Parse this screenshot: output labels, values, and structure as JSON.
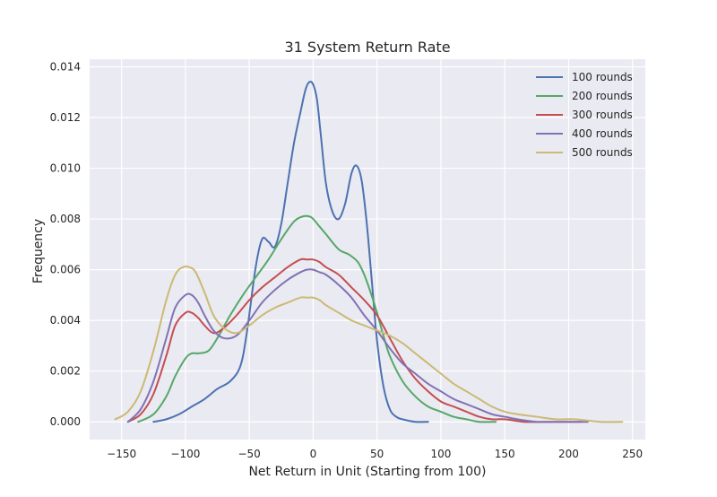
{
  "chart_data": {
    "type": "line",
    "title": "31 System Return Rate",
    "xlabel": "Net Return in Unit (Starting from 100)",
    "ylabel": "Frequency",
    "xlim": [
      -175,
      260
    ],
    "ylim": [
      -0.0007,
      0.0143
    ],
    "xticks": [
      -150,
      -100,
      -50,
      0,
      50,
      100,
      150,
      200,
      250
    ],
    "xtick_labels": [
      "−150",
      "−100",
      "−50",
      "0",
      "50",
      "100",
      "150",
      "200",
      "250"
    ],
    "yticks": [
      0.0,
      0.002,
      0.004,
      0.006,
      0.008,
      0.01,
      0.012,
      0.014
    ],
    "ytick_labels": [
      "0.000",
      "0.002",
      "0.004",
      "0.006",
      "0.008",
      "0.010",
      "0.012",
      "0.014"
    ],
    "grid": true,
    "legend_position": "top-right",
    "series": [
      {
        "name": "100 rounds",
        "color": "#4c72b0",
        "x": [
          -125,
          -115,
          -105,
          -95,
          -85,
          -75,
          -65,
          -57,
          -52,
          -45,
          -40,
          -35,
          -30,
          -25,
          -20,
          -15,
          -10,
          -6,
          -3,
          0,
          3,
          6,
          10,
          15,
          20,
          25,
          30,
          34,
          38,
          42,
          46,
          50,
          55,
          60,
          65,
          70,
          80,
          90
        ],
        "values": [
          0.0,
          0.0001,
          0.0003,
          0.0006,
          0.0009,
          0.0013,
          0.0016,
          0.0022,
          0.0035,
          0.0061,
          0.0072,
          0.0071,
          0.0069,
          0.0078,
          0.0094,
          0.011,
          0.0122,
          0.0131,
          0.0134,
          0.0133,
          0.0127,
          0.0113,
          0.0094,
          0.0083,
          0.008,
          0.0086,
          0.0098,
          0.0101,
          0.0095,
          0.0078,
          0.0055,
          0.0032,
          0.0014,
          0.0005,
          0.0002,
          0.0001,
          0.0,
          0.0
        ]
      },
      {
        "name": "200 rounds",
        "color": "#55a868",
        "x": [
          -137,
          -125,
          -115,
          -108,
          -100,
          -95,
          -90,
          -82,
          -75,
          -65,
          -55,
          -45,
          -35,
          -25,
          -15,
          -8,
          -3,
          0,
          5,
          10,
          20,
          28,
          35,
          40,
          45,
          50,
          55,
          60,
          70,
          80,
          90,
          100,
          110,
          120,
          130,
          143
        ],
        "values": [
          0.0,
          0.0003,
          0.001,
          0.0018,
          0.0025,
          0.0027,
          0.0027,
          0.0028,
          0.0033,
          0.0042,
          0.005,
          0.0057,
          0.0064,
          0.0072,
          0.0079,
          0.0081,
          0.0081,
          0.008,
          0.0077,
          0.0074,
          0.0068,
          0.0066,
          0.0063,
          0.0058,
          0.0051,
          0.0043,
          0.0034,
          0.0026,
          0.0016,
          0.001,
          0.0006,
          0.0004,
          0.0002,
          0.0001,
          0.0,
          0.0
        ]
      },
      {
        "name": "300 rounds",
        "color": "#c44e52",
        "x": [
          -145,
          -135,
          -125,
          -115,
          -108,
          -100,
          -95,
          -90,
          -85,
          -78,
          -70,
          -60,
          -50,
          -40,
          -30,
          -20,
          -10,
          -5,
          0,
          5,
          10,
          20,
          30,
          40,
          50,
          60,
          70,
          80,
          90,
          100,
          110,
          120,
          130,
          140,
          150,
          165,
          180,
          195,
          210
        ],
        "values": [
          0.0,
          0.0003,
          0.0011,
          0.0026,
          0.0038,
          0.0043,
          0.0043,
          0.0041,
          0.0038,
          0.0035,
          0.0037,
          0.0042,
          0.0048,
          0.0053,
          0.0057,
          0.0061,
          0.0064,
          0.0064,
          0.0064,
          0.0063,
          0.0061,
          0.0058,
          0.0053,
          0.0048,
          0.0042,
          0.0033,
          0.0024,
          0.0017,
          0.0012,
          0.0008,
          0.0006,
          0.0004,
          0.0002,
          0.0001,
          0.0001,
          0.0,
          0.0,
          0.0,
          0.0
        ]
      },
      {
        "name": "400 rounds",
        "color": "#8172b3",
        "x": [
          -145,
          -135,
          -125,
          -115,
          -108,
          -100,
          -95,
          -90,
          -85,
          -78,
          -70,
          -60,
          -50,
          -40,
          -30,
          -20,
          -10,
          -5,
          0,
          5,
          10,
          20,
          30,
          40,
          50,
          60,
          70,
          80,
          90,
          100,
          110,
          120,
          130,
          140,
          150,
          160,
          175,
          190,
          205,
          215
        ],
        "values": [
          0.0,
          0.0005,
          0.0016,
          0.0033,
          0.0045,
          0.005,
          0.005,
          0.0047,
          0.0042,
          0.0036,
          0.0033,
          0.0034,
          0.004,
          0.0047,
          0.0052,
          0.0056,
          0.0059,
          0.006,
          0.006,
          0.0059,
          0.0058,
          0.0054,
          0.0049,
          0.0042,
          0.0036,
          0.0029,
          0.0023,
          0.0019,
          0.0015,
          0.0012,
          0.0009,
          0.0007,
          0.0005,
          0.0003,
          0.0002,
          0.0001,
          0.0,
          0.0,
          0.0,
          0.0
        ]
      },
      {
        "name": "500 rounds",
        "color": "#ccb974",
        "x": [
          -155,
          -145,
          -135,
          -125,
          -115,
          -108,
          -102,
          -97,
          -92,
          -85,
          -78,
          -70,
          -60,
          -50,
          -40,
          -30,
          -20,
          -10,
          -5,
          0,
          5,
          10,
          20,
          30,
          40,
          50,
          60,
          70,
          80,
          90,
          100,
          110,
          120,
          130,
          140,
          150,
          160,
          175,
          190,
          205,
          225,
          242
        ],
        "values": [
          0.0001,
          0.0004,
          0.0012,
          0.0028,
          0.0048,
          0.0058,
          0.0061,
          0.0061,
          0.0059,
          0.0051,
          0.0042,
          0.0037,
          0.0035,
          0.0038,
          0.0042,
          0.0045,
          0.0047,
          0.0049,
          0.0049,
          0.0049,
          0.0048,
          0.0046,
          0.0043,
          0.004,
          0.0038,
          0.0036,
          0.0034,
          0.0031,
          0.0027,
          0.0023,
          0.0019,
          0.0015,
          0.0012,
          0.0009,
          0.0006,
          0.0004,
          0.0003,
          0.0002,
          0.0001,
          0.0001,
          0.0,
          0.0
        ]
      }
    ]
  },
  "colors": {
    "plot_background": "#eaeaf2",
    "grid": "#ffffff",
    "text": "#262626"
  }
}
